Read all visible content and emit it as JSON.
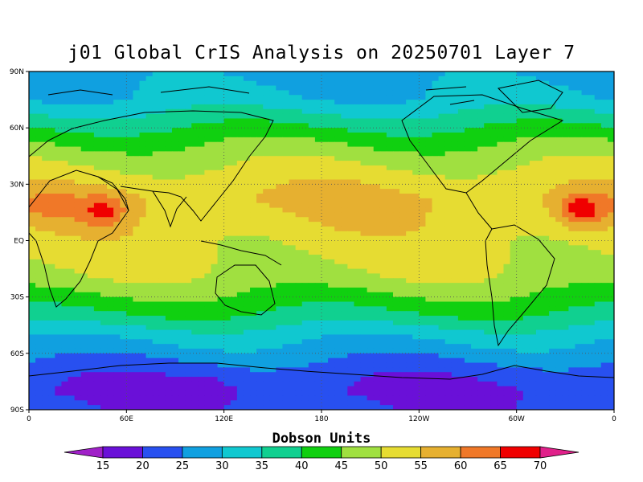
{
  "title": "j01 Global CrIS Analysis on 20250701 Layer 7",
  "colorbar": {
    "title": "Dobson Units",
    "levels": [
      15,
      20,
      25,
      30,
      35,
      40,
      45,
      50,
      55,
      60,
      65,
      70
    ],
    "colors": [
      "#a020c8",
      "#6a10d8",
      "#2850f0",
      "#10a0e0",
      "#10c8d0",
      "#10d090",
      "#10d010",
      "#a0e040",
      "#e6dc32",
      "#e6b030",
      "#f07828",
      "#f00000",
      "#e0208a"
    ]
  },
  "map": {
    "lat_ticks": [
      "90N",
      "60N",
      "30N",
      "EQ",
      "30S",
      "60S",
      "90S"
    ],
    "lon_ticks": [
      "0",
      "60E",
      "120E",
      "180",
      "120W",
      "60W",
      "0"
    ],
    "grid": "dotted",
    "projection": "cylindrical-equidistant"
  },
  "chart_data": {
    "type": "heatmap",
    "title": "j01 Global CrIS Analysis on 20250701 Layer 7",
    "colorbar_label": "Dobson Units",
    "units": "Dobson Units",
    "levels": [
      15,
      20,
      25,
      30,
      35,
      40,
      45,
      50,
      55,
      60,
      65,
      70
    ],
    "lat_range": [
      -90,
      90
    ],
    "lon_range": [
      0,
      360
    ],
    "zonal_profile": [
      {
        "lat": 90,
        "value": 28
      },
      {
        "lat": 75,
        "value": 31
      },
      {
        "lat": 65,
        "value": 37
      },
      {
        "lat": 55,
        "value": 43
      },
      {
        "lat": 45,
        "value": 48
      },
      {
        "lat": 35,
        "value": 52
      },
      {
        "lat": 22,
        "value": 56
      },
      {
        "lat": 10,
        "value": 54
      },
      {
        "lat": 0,
        "value": 52
      },
      {
        "lat": -10,
        "value": 51
      },
      {
        "lat": -20,
        "value": 49
      },
      {
        "lat": -30,
        "value": 44
      },
      {
        "lat": -40,
        "value": 39
      },
      {
        "lat": -50,
        "value": 32
      },
      {
        "lat": -60,
        "value": 27
      },
      {
        "lat": -70,
        "value": 22
      },
      {
        "lat": -80,
        "value": 19
      },
      {
        "lat": -90,
        "value": 21
      }
    ],
    "features": [
      {
        "lat": 15,
        "lon": 45,
        "value": 65
      },
      {
        "lat": 16,
        "lon": 340,
        "value": 68
      },
      {
        "lat": 18,
        "lon": 15,
        "value": 61
      },
      {
        "lat": 18,
        "lon": 190,
        "value": 57
      },
      {
        "lat": -78,
        "lon": 110,
        "value": 17
      }
    ]
  }
}
